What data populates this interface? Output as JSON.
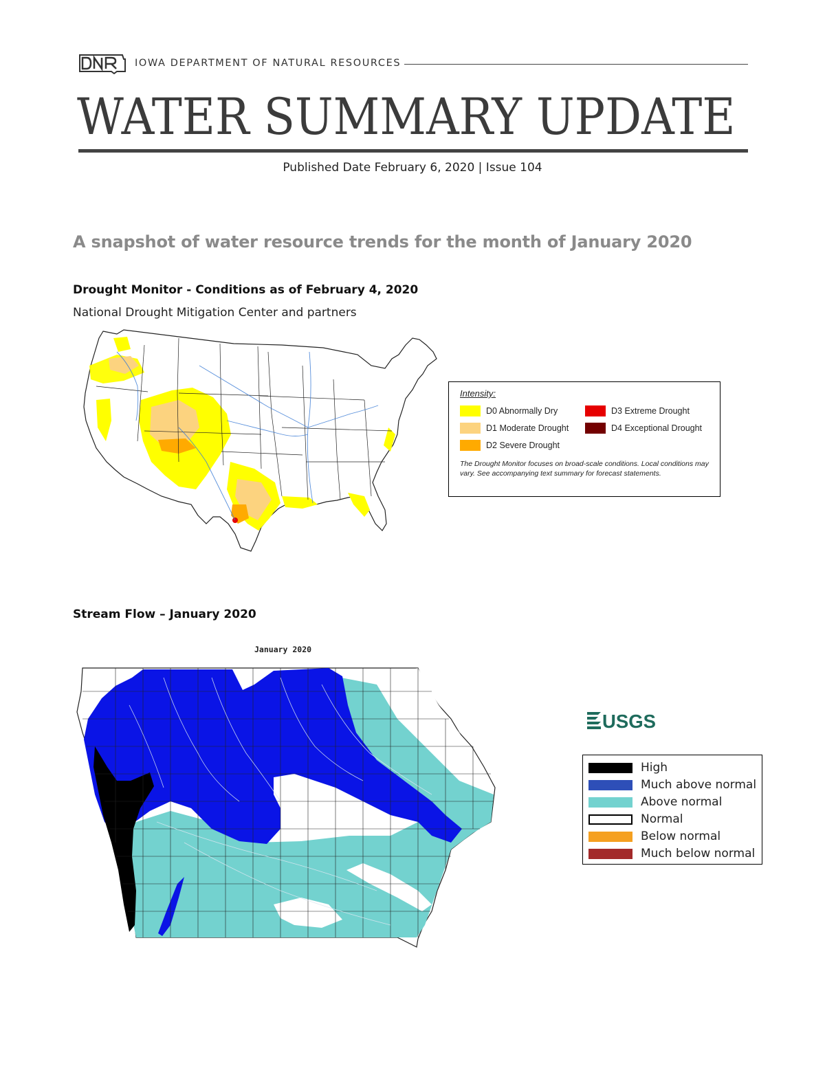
{
  "header": {
    "logo_text": "DNR",
    "agency": "IOWA DEPARTMENT OF NATURAL RESOURCES",
    "title": "WATER SUMMARY UPDATE",
    "published": "Published Date February 6, 2020 | Issue 104"
  },
  "snapshot_heading": "A snapshot of water resource trends for the month of January 2020",
  "drought_monitor": {
    "heading": "Drought Monitor - Conditions as of February 4, 2020",
    "source": "National Drought Mitigation Center and partners",
    "legend": {
      "title": "Intensity:",
      "items": [
        {
          "label": "D0 Abnormally Dry",
          "color": "#ffff00"
        },
        {
          "label": "D1 Moderate Drought",
          "color": "#fcd37f"
        },
        {
          "label": "D2 Severe Drought",
          "color": "#ffaa00"
        },
        {
          "label": "D3 Extreme Drought",
          "color": "#e60000"
        },
        {
          "label": "D4 Exceptional Drought",
          "color": "#730000"
        }
      ],
      "note": "The Drought Monitor focuses on broad-scale conditions. Local conditions may vary. See accompanying text summary for forecast statements."
    }
  },
  "stream_flow": {
    "heading": "Stream Flow – January 2020",
    "map_title": "January 2020",
    "logo_text": "USGS",
    "legend": [
      {
        "label": "High",
        "color": "#000000"
      },
      {
        "label": "Much above normal",
        "color": "#2e4fb8"
      },
      {
        "label": "Above normal",
        "color": "#73d2cf"
      },
      {
        "label": "Normal",
        "color": "#ffffff"
      },
      {
        "label": "Below normal",
        "color": "#f5a020"
      },
      {
        "label": "Much below normal",
        "color": "#a32a2a"
      }
    ]
  }
}
